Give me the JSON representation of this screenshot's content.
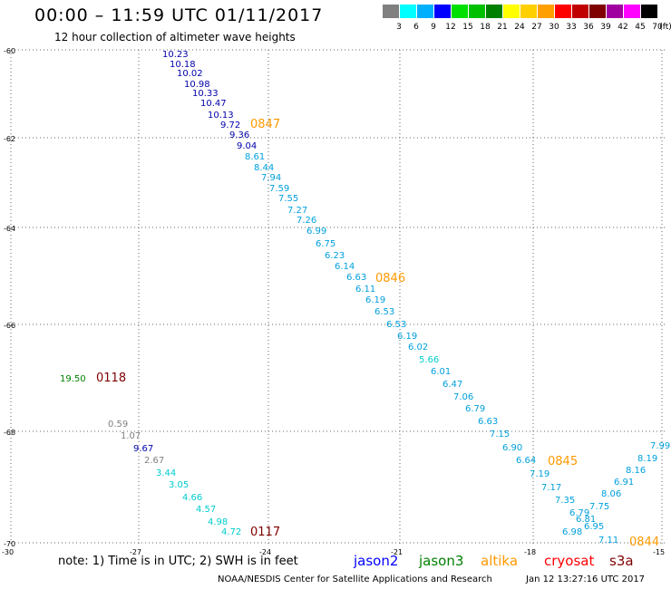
{
  "header": {
    "title": "00:00 – 11:59 UTC 01/11/2017",
    "subtitle": "12 hour collection of altimeter wave heights"
  },
  "legend": {
    "unit": "(ft)",
    "bins": [
      {
        "label": "3",
        "color": "#808080"
      },
      {
        "label": "6",
        "color": "#00ffff"
      },
      {
        "label": "9",
        "color": "#00b0ff"
      },
      {
        "label": "12",
        "color": "#0000ff"
      },
      {
        "label": "15",
        "color": "#00e000"
      },
      {
        "label": "18",
        "color": "#00c000"
      },
      {
        "label": "21",
        "color": "#008000"
      },
      {
        "label": "24",
        "color": "#ffff00"
      },
      {
        "label": "27",
        "color": "#ffd000"
      },
      {
        "label": "30",
        "color": "#ffa000"
      },
      {
        "label": "33",
        "color": "#ff0000"
      },
      {
        "label": "36",
        "color": "#c00000"
      },
      {
        "label": "39",
        "color": "#800000"
      },
      {
        "label": "42",
        "color": "#a000a0"
      },
      {
        "label": "45",
        "color": "#ff00ff"
      },
      {
        "label": "70",
        "color": "#000000"
      }
    ]
  },
  "map": {
    "lat_ticks": [
      "-60",
      "-62",
      "-64",
      "-66",
      "-68",
      "-70"
    ],
    "lon_ticks": [
      "-30",
      "-27",
      "-24",
      "-21",
      "-18",
      "-15"
    ],
    "passes": [
      {
        "label": "0847",
        "color": "#ff9900"
      },
      {
        "label": "0846",
        "color": "#ff9900"
      },
      {
        "label": "0845",
        "color": "#ff9900"
      },
      {
        "label": "0844",
        "color": "#ff9900"
      },
      {
        "label": "0118",
        "color": "#800000"
      },
      {
        "label": "0117",
        "color": "#800000"
      }
    ],
    "points": [
      {
        "v": "10.23",
        "c": "#0000aa"
      },
      {
        "v": "10.18",
        "c": "#0000aa"
      },
      {
        "v": "10.02",
        "c": "#0000aa"
      },
      {
        "v": "10.98",
        "c": "#0000aa"
      },
      {
        "v": "10.33",
        "c": "#0000aa"
      },
      {
        "v": "10.47",
        "c": "#0000aa"
      },
      {
        "v": "10.13",
        "c": "#0000aa"
      },
      {
        "v": "9.72",
        "c": "#0000aa"
      },
      {
        "v": "9.36",
        "c": "#0000aa"
      },
      {
        "v": "9.04",
        "c": "#0000aa"
      },
      {
        "v": "8.61",
        "c": "#00a0dd"
      },
      {
        "v": "8.44",
        "c": "#00a0dd"
      },
      {
        "v": "7.94",
        "c": "#00a0dd"
      },
      {
        "v": "7.59",
        "c": "#00a0dd"
      },
      {
        "v": "7.55",
        "c": "#00a0dd"
      },
      {
        "v": "7.27",
        "c": "#00a0dd"
      },
      {
        "v": "7.26",
        "c": "#00a0dd"
      },
      {
        "v": "6.99",
        "c": "#00a0dd"
      },
      {
        "v": "6.75",
        "c": "#00a0dd"
      },
      {
        "v": "6.23",
        "c": "#00a0dd"
      },
      {
        "v": "6.14",
        "c": "#00a0dd"
      },
      {
        "v": "6.63",
        "c": "#00a0dd"
      },
      {
        "v": "6.11",
        "c": "#00a0dd"
      },
      {
        "v": "6.19",
        "c": "#00a0dd"
      },
      {
        "v": "6.53",
        "c": "#00a0dd"
      },
      {
        "v": "6.53",
        "c": "#00a0dd"
      },
      {
        "v": "6.19",
        "c": "#00a0dd"
      },
      {
        "v": "6.02",
        "c": "#00a0dd"
      },
      {
        "v": "5.66",
        "c": "#00cccc"
      },
      {
        "v": "6.01",
        "c": "#00a0dd"
      },
      {
        "v": "6.47",
        "c": "#00a0dd"
      },
      {
        "v": "7.06",
        "c": "#00a0dd"
      },
      {
        "v": "6.79",
        "c": "#00a0dd"
      },
      {
        "v": "6.63",
        "c": "#00a0dd"
      },
      {
        "v": "7.15",
        "c": "#00a0dd"
      },
      {
        "v": "6.90",
        "c": "#00a0dd"
      },
      {
        "v": "6.64",
        "c": "#00a0dd"
      },
      {
        "v": "7.19",
        "c": "#00a0dd"
      },
      {
        "v": "7.17",
        "c": "#00a0dd"
      },
      {
        "v": "7.35",
        "c": "#00a0dd"
      },
      {
        "v": "6.79",
        "c": "#00a0dd"
      },
      {
        "v": "6.81",
        "c": "#00a0dd"
      },
      {
        "v": "6.95",
        "c": "#00a0dd"
      },
      {
        "v": "6.98",
        "c": "#00a0dd"
      },
      {
        "v": "7.11",
        "c": "#00a0dd"
      },
      {
        "v": "7.75",
        "c": "#00a0dd"
      },
      {
        "v": "8.06",
        "c": "#00a0dd"
      },
      {
        "v": "6.91",
        "c": "#00a0dd"
      },
      {
        "v": "8.16",
        "c": "#00a0dd"
      },
      {
        "v": "8.19",
        "c": "#00a0dd"
      },
      {
        "v": "7.99",
        "c": "#00a0dd"
      },
      {
        "v": "19.50",
        "c": "#008000"
      },
      {
        "v": "0.59",
        "c": "#808080"
      },
      {
        "v": "1.07",
        "c": "#808080"
      },
      {
        "v": "9.67",
        "c": "#0000aa"
      },
      {
        "v": "2.67",
        "c": "#808080"
      },
      {
        "v": "3.44",
        "c": "#00cccc"
      },
      {
        "v": "3.05",
        "c": "#00cccc"
      },
      {
        "v": "4.66",
        "c": "#00cccc"
      },
      {
        "v": "4.57",
        "c": "#00cccc"
      },
      {
        "v": "4.98",
        "c": "#00cccc"
      },
      {
        "v": "4.72",
        "c": "#00cccc"
      }
    ]
  },
  "notes": {
    "text": "note: 1) Time is in UTC; 2) SWH is in feet"
  },
  "satellites": [
    {
      "name": "jason2",
      "color": "#0000ff"
    },
    {
      "name": "jason3",
      "color": "#008000"
    },
    {
      "name": "altika",
      "color": "#ff9900"
    },
    {
      "name": "cryosat",
      "color": "#ff0000"
    },
    {
      "name": "s3a",
      "color": "#800000"
    }
  ],
  "footer": {
    "credit": "NOAA/NESDIS Center for Satellite Applications and Research",
    "timestamp": "Jan 12 13:27:16 UTC 2017"
  }
}
